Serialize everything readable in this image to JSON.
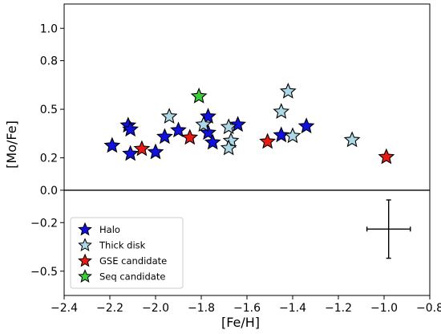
{
  "chart_data": {
    "type": "scatter",
    "xlabel": "[Fe/H]",
    "ylabel": "[Mo/Fe]",
    "xlim": [
      -2.4,
      -0.8
    ],
    "ylim": [
      -0.65,
      1.15
    ],
    "x_ticks": [
      -2.4,
      -2.2,
      -2.0,
      -1.8,
      -1.6,
      -1.4,
      -1.2,
      -1.0,
      -0.8
    ],
    "x_tick_labels": [
      "−2.4",
      "−2.2",
      "−2.0",
      "−1.8",
      "−1.6",
      "−1.4",
      "−1.2",
      "−1.0",
      "−0.8"
    ],
    "y_ticks": [
      1.0,
      0.8,
      0.5,
      0.2,
      0.0,
      -0.2,
      -0.5
    ],
    "y_tick_labels": [
      "1.0",
      "0.8",
      "0.5",
      "0.2",
      "0.0",
      "−0.2",
      "−0.5"
    ],
    "zero_line": 0.0,
    "grid": false,
    "legend_position": "lower-left",
    "series": [
      {
        "name": "Halo",
        "color": "#1010e0",
        "points": [
          [
            -2.19,
            0.275
          ],
          [
            -2.12,
            0.4
          ],
          [
            -2.11,
            0.375
          ],
          [
            -2.11,
            0.225
          ],
          [
            -2.0,
            0.235
          ],
          [
            -1.96,
            0.33
          ],
          [
            -1.9,
            0.37
          ],
          [
            -1.77,
            0.455
          ],
          [
            -1.77,
            0.355
          ],
          [
            -1.75,
            0.295
          ],
          [
            -1.64,
            0.405
          ],
          [
            -1.45,
            0.34
          ],
          [
            -1.34,
            0.395
          ]
        ]
      },
      {
        "name": "Thick disk",
        "color": "#add8e6",
        "points": [
          [
            -1.94,
            0.455
          ],
          [
            -1.79,
            0.405
          ],
          [
            -1.68,
            0.39
          ],
          [
            -1.67,
            0.305
          ],
          [
            -1.68,
            0.26
          ],
          [
            -1.45,
            0.485
          ],
          [
            -1.42,
            0.61
          ],
          [
            -1.4,
            0.335
          ],
          [
            -1.14,
            0.31
          ]
        ]
      },
      {
        "name": "GSE candidate",
        "color": "#e81a14",
        "points": [
          [
            -2.06,
            0.255
          ],
          [
            -1.85,
            0.325
          ],
          [
            -1.51,
            0.3
          ],
          [
            -0.99,
            0.205
          ]
        ]
      },
      {
        "name": "Seq candidate",
        "color": "#3ccc3c",
        "points": [
          [
            -1.81,
            0.58
          ]
        ]
      }
    ],
    "error_bar": {
      "x": -0.98,
      "y": -0.24,
      "xerr": 0.095,
      "yerr": 0.18
    }
  }
}
